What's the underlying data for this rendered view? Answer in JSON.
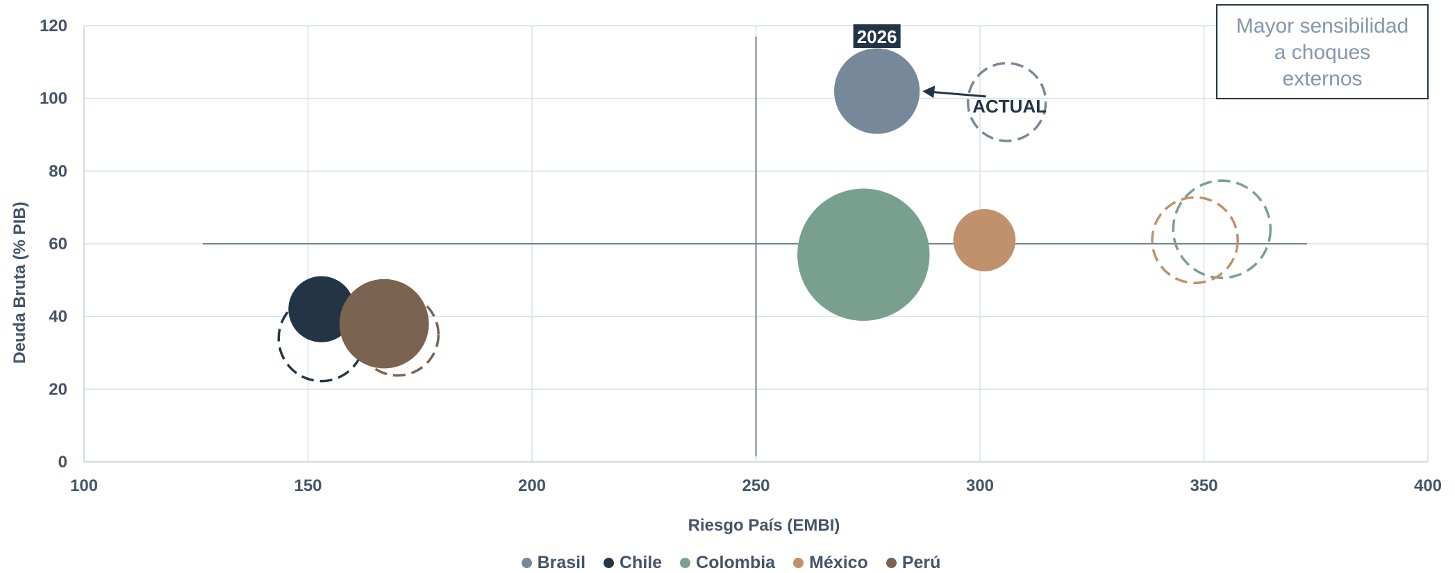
{
  "chart_data": {
    "type": "bubble",
    "xlabel": "Riesgo País (EMBI)",
    "ylabel": "Deuda Bruta (% PIB)",
    "xlim": [
      100,
      400
    ],
    "ylim": [
      0,
      120
    ],
    "x_ticks": [
      100,
      150,
      200,
      250,
      300,
      350,
      400
    ],
    "y_ticks": [
      0,
      20,
      40,
      60,
      80,
      100,
      120
    ],
    "grid": true,
    "legend_position": "bottom",
    "reference_lines": {
      "x": 250,
      "y": 60
    },
    "series": [
      {
        "name": "Brasil",
        "color": "#768899",
        "actual": {
          "x": 306,
          "y": 99,
          "size": 1.0
        },
        "2026": {
          "x": 277,
          "y": 102,
          "size": 1.1
        }
      },
      {
        "name": "Chile",
        "color": "#243447",
        "actual": {
          "x": 153,
          "y": 34,
          "size": 1.1
        },
        "2026": {
          "x": 153,
          "y": 42,
          "size": 0.85
        }
      },
      {
        "name": "Colombia",
        "color": "#79a08f",
        "actual": {
          "x": 354,
          "y": 64,
          "size": 1.25
        },
        "2026": {
          "x": 274,
          "y": 57,
          "size": 1.7
        }
      },
      {
        "name": "México",
        "color": "#c0916c",
        "actual": {
          "x": 348,
          "y": 61,
          "size": 1.1
        },
        "2026": {
          "x": 301,
          "y": 61,
          "size": 0.8
        }
      },
      {
        "name": "Perú",
        "color": "#7a6350",
        "actual": {
          "x": 170,
          "y": 35,
          "size": 1.05
        },
        "2026": {
          "x": 167,
          "y": 38,
          "size": 1.15
        }
      }
    ],
    "annotations": {
      "label_2026": "2026",
      "label_actual": "ACTUAL",
      "box_lines": [
        "Mayor sensibilidad",
        "a choques",
        "externos"
      ]
    }
  }
}
